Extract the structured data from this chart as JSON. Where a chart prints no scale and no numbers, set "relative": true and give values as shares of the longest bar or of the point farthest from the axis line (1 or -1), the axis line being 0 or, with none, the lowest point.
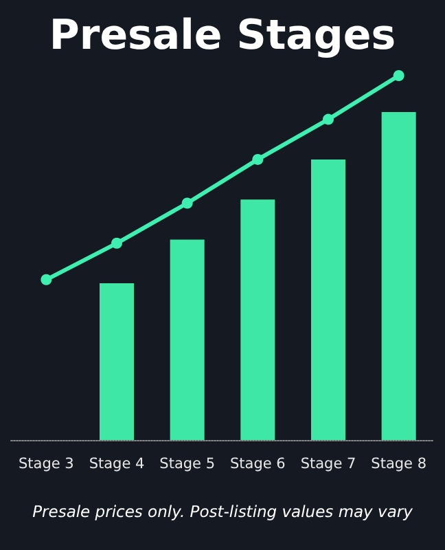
{
  "chart_data": {
    "type": "bar",
    "title": "Presale Stages",
    "relative": true,
    "categories": [
      "Stage 3",
      "Stage 4",
      "Stage 5",
      "Stage 6",
      "Stage 7",
      "Stage 8"
    ],
    "series": [
      {
        "color": "#3ee8a4",
        "values": [
          null,
          0.43,
          0.55,
          0.66,
          0.77,
          0.9
        ]
      },
      {
        "type": "line",
        "color": "#3ef0b0",
        "values": [
          0.44,
          0.54,
          0.65,
          0.77,
          0.88,
          1.0
        ],
        "marker": "circle"
      }
    ],
    "annotations": [
      "Presale prices only. Post-listing values may vary"
    ],
    "grid": false
  }
}
